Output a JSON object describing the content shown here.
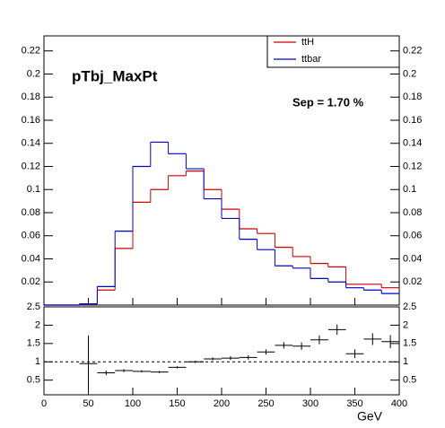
{
  "chart_data": [
    {
      "type": "histogram",
      "title": "pTbj_MaxPt",
      "annotation": "Sep = 1.70 %",
      "bins": [
        0,
        20,
        40,
        60,
        80,
        100,
        120,
        140,
        160,
        180,
        200,
        220,
        240,
        260,
        280,
        300,
        320,
        340,
        360,
        380,
        400
      ],
      "series": [
        {
          "name": "ttH",
          "color": "#cc0000",
          "values": [
            0,
            0,
            0.001,
            0.013,
            0.049,
            0.089,
            0.1,
            0.112,
            0.116,
            0.1,
            0.083,
            0.066,
            0.062,
            0.05,
            0.042,
            0.036,
            0.033,
            0.018,
            0.018,
            0.015
          ]
        },
        {
          "name": "ttbar",
          "color": "#0000cc",
          "values": [
            0,
            0,
            0.001,
            0.016,
            0.064,
            0.12,
            0.141,
            0.131,
            0.118,
            0.092,
            0.075,
            0.057,
            0.048,
            0.034,
            0.032,
            0.023,
            0.02,
            0.015,
            0.013,
            0.01
          ]
        }
      ],
      "xlim": [
        0,
        400
      ],
      "ylim": [
        0,
        0.233
      ],
      "yticks": [
        0.02,
        0.04,
        0.06,
        0.08,
        0.1,
        0.12,
        0.14,
        0.16,
        0.18,
        0.2,
        0.22
      ],
      "legend": "top-right"
    },
    {
      "type": "errorbar",
      "x_label": "GeV",
      "x": [
        50,
        70,
        90,
        110,
        130,
        150,
        170,
        190,
        210,
        230,
        250,
        270,
        290,
        310,
        330,
        350,
        370,
        390
      ],
      "values": [
        0.95,
        0.7,
        0.76,
        0.74,
        0.72,
        0.85,
        1.0,
        1.08,
        1.1,
        1.12,
        1.27,
        1.45,
        1.43,
        1.6,
        1.88,
        1.22,
        1.62,
        1.55
      ],
      "errors": [
        0.77,
        0.06,
        0.04,
        0.03,
        0.03,
        0.03,
        0.03,
        0.04,
        0.05,
        0.06,
        0.07,
        0.09,
        0.1,
        0.12,
        0.14,
        0.12,
        0.16,
        0.18
      ],
      "color": "#000000",
      "xlim": [
        0,
        400
      ],
      "ylim": [
        0.1,
        2.5
      ],
      "xticks": [
        0,
        50,
        100,
        150,
        200,
        250,
        300,
        350,
        400
      ],
      "yticks": [
        0.5,
        1,
        1.5,
        2,
        2.5
      ]
    }
  ]
}
